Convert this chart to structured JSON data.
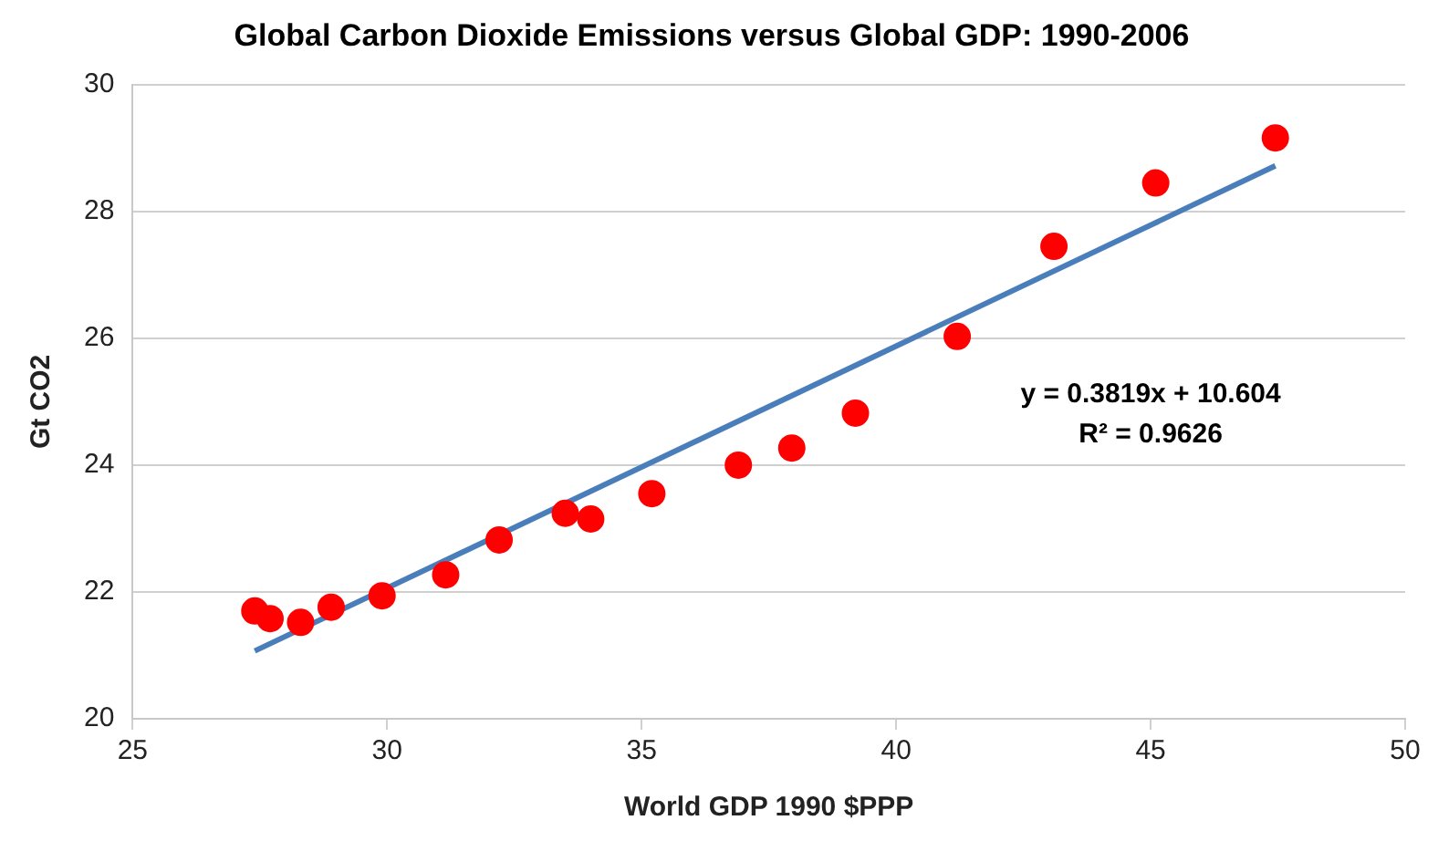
{
  "chart_data": {
    "type": "scatter",
    "title": "Global Carbon Dioxide Emissions versus Global GDP: 1990-2006",
    "xlabel": "World GDP 1990 $PPP",
    "ylabel": "Gt CO2",
    "x": [
      27.4,
      27.7,
      28.3,
      28.9,
      29.9,
      31.15,
      32.2,
      33.5,
      34.0,
      35.2,
      36.9,
      37.95,
      39.2,
      41.2,
      43.1,
      45.1,
      47.45
    ],
    "series": [
      {
        "color": "#ff0000",
        "marker": "circle",
        "values": [
          21.7,
          21.58,
          21.52,
          21.76,
          21.94,
          22.27,
          22.82,
          23.24,
          23.15,
          23.55,
          24.0,
          24.27,
          24.82,
          26.03,
          27.45,
          28.45,
          29.16
        ]
      },
      {
        "type": "line",
        "color": "#4a7ebb",
        "x": [
          27.4,
          47.45
        ],
        "values": [
          21.07,
          28.72
        ]
      }
    ],
    "annotations": [
      "y = 0.3819x + 10.604\nR² = 0.9626"
    ],
    "xlim": [
      25,
      50
    ],
    "xticks": [
      25,
      30,
      35,
      40,
      45,
      50
    ],
    "ylim": [
      20,
      30
    ],
    "yticks": [
      20,
      22,
      24,
      26,
      28,
      30
    ],
    "grid": "y",
    "legend": false
  }
}
